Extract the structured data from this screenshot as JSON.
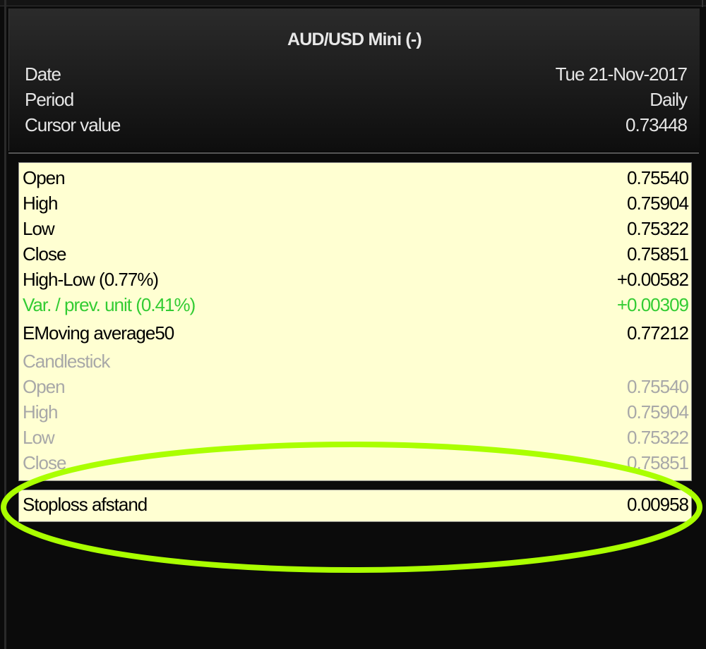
{
  "header": {
    "title": "AUD/USD Mini (-)",
    "rows": [
      {
        "label": "Date",
        "value": "Tue 21-Nov-2017"
      },
      {
        "label": "Period",
        "value": "Daily"
      },
      {
        "label": "Cursor value",
        "value": "0.73448"
      }
    ]
  },
  "details": {
    "rows": [
      {
        "label": "Open",
        "value": "0.75540"
      },
      {
        "label": "High",
        "value": "0.75904"
      },
      {
        "label": "Low",
        "value": "0.75322"
      },
      {
        "label": "Close",
        "value": "0.75851"
      },
      {
        "label": "High-Low (0.77%)",
        "value": "+0.00582"
      },
      {
        "label": "Var. / prev. unit (0.41%)",
        "value": "+0.00309"
      },
      {
        "label": "EMoving average50",
        "value": "0.77212"
      },
      {
        "label": "Candlestick",
        "value": ""
      },
      {
        "label": "Open",
        "value": "0.75540"
      },
      {
        "label": "High",
        "value": "0.75904"
      },
      {
        "label": "Low",
        "value": "0.75322"
      },
      {
        "label": "Close",
        "value": "0.75851"
      }
    ]
  },
  "stoploss": {
    "label": "Stoploss afstand",
    "value": "0.00958"
  },
  "colors": {
    "positive": "#33cc33",
    "highlight_ellipse": "#aaff00",
    "panel": "#ffffd2"
  }
}
